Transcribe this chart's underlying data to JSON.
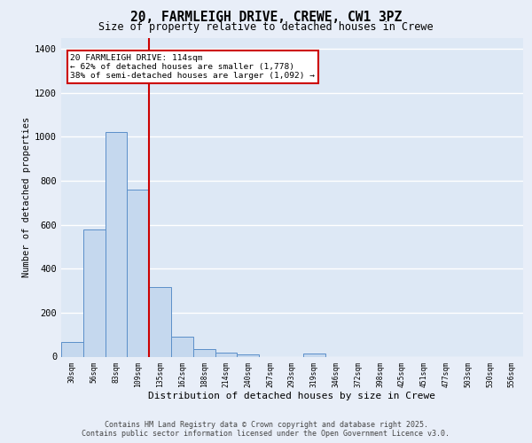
{
  "title1": "20, FARMLEIGH DRIVE, CREWE, CW1 3PZ",
  "title2": "Size of property relative to detached houses in Crewe",
  "xlabel": "Distribution of detached houses by size in Crewe",
  "ylabel": "Number of detached properties",
  "bar_labels": [
    "30sqm",
    "56sqm",
    "83sqm",
    "109sqm",
    "135sqm",
    "162sqm",
    "188sqm",
    "214sqm",
    "240sqm",
    "267sqm",
    "293sqm",
    "319sqm",
    "346sqm",
    "372sqm",
    "398sqm",
    "425sqm",
    "451sqm",
    "477sqm",
    "503sqm",
    "530sqm",
    "556sqm"
  ],
  "bar_values": [
    67,
    580,
    1020,
    760,
    315,
    90,
    35,
    20,
    12,
    0,
    0,
    15,
    0,
    0,
    0,
    0,
    0,
    0,
    0,
    0,
    0
  ],
  "bar_color": "#c5d8ee",
  "bar_edge_color": "#5b8fc9",
  "vline_color": "#cc0000",
  "vline_pos": 3.5,
  "annotation_text": "20 FARMLEIGH DRIVE: 114sqm\n← 62% of detached houses are smaller (1,778)\n38% of semi-detached houses are larger (1,092) →",
  "annotation_box_facecolor": "#ffffff",
  "annotation_box_edgecolor": "#cc0000",
  "ylim": [
    0,
    1450
  ],
  "yticks": [
    0,
    200,
    400,
    600,
    800,
    1000,
    1200,
    1400
  ],
  "plot_bg_color": "#dde8f5",
  "fig_bg_color": "#e8eef8",
  "grid_color": "#ffffff",
  "footer_line1": "Contains HM Land Registry data © Crown copyright and database right 2025.",
  "footer_line2": "Contains public sector information licensed under the Open Government Licence v3.0."
}
